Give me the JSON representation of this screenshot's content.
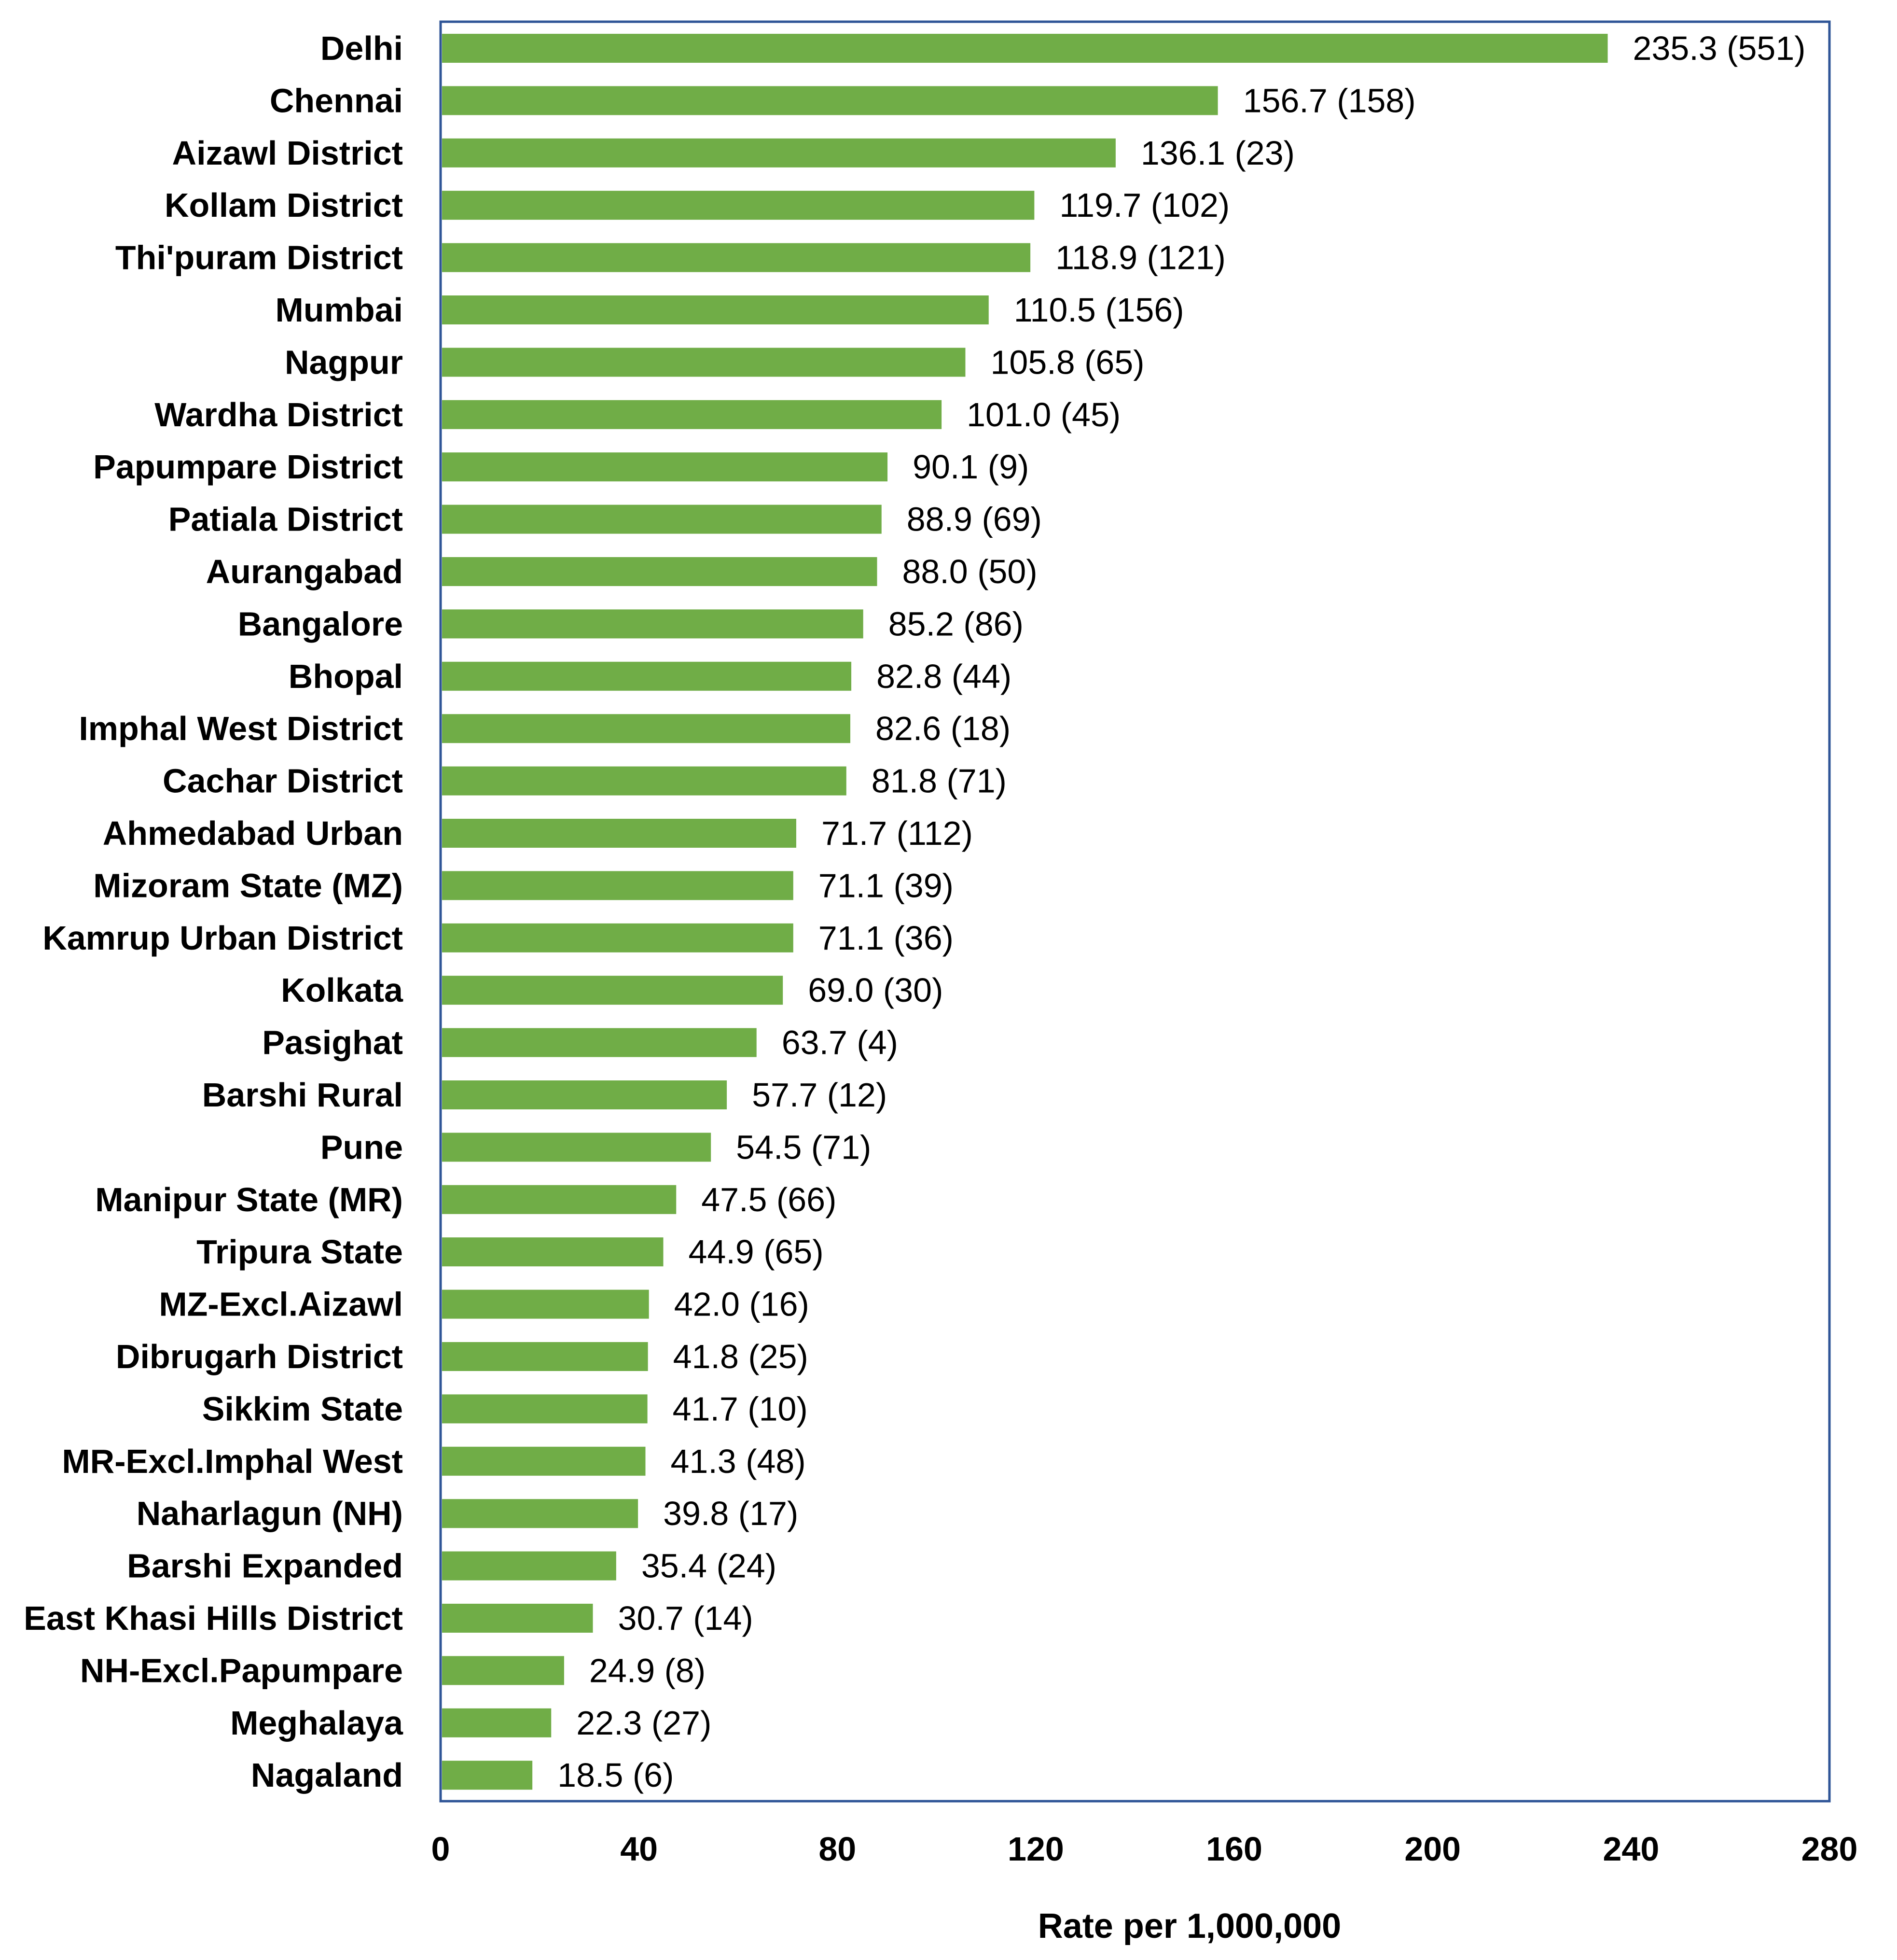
{
  "chart_data": {
    "type": "bar",
    "orientation": "horizontal",
    "categories": [
      "Delhi",
      "Chennai",
      "Aizawl District",
      "Kollam District",
      "Thi'puram District",
      "Mumbai",
      "Nagpur",
      "Wardha District",
      "Papumpare District",
      "Patiala District",
      "Aurangabad",
      "Bangalore",
      "Bhopal",
      "Imphal West District",
      "Cachar District",
      "Ahmedabad Urban",
      "Mizoram State (MZ)",
      "Kamrup Urban District",
      "Kolkata",
      "Pasighat",
      "Barshi Rural",
      "Pune",
      "Manipur State (MR)",
      "Tripura State",
      "MZ-Excl.Aizawl",
      "Dibrugarh District",
      "Sikkim State",
      "MR-Excl.Imphal West",
      "Naharlagun (NH)",
      "Barshi Expanded",
      "East Khasi Hills District",
      "NH-Excl.Papumpare",
      "Meghalaya",
      "Nagaland"
    ],
    "values": [
      235.3,
      156.7,
      136.1,
      119.7,
      118.9,
      110.5,
      105.8,
      101.0,
      90.1,
      88.9,
      88.0,
      85.2,
      82.8,
      82.6,
      81.8,
      71.7,
      71.1,
      71.1,
      69.0,
      63.7,
      57.7,
      54.5,
      47.5,
      44.9,
      42.0,
      41.8,
      41.7,
      41.3,
      39.8,
      35.4,
      30.7,
      24.9,
      22.3,
      18.5
    ],
    "data_labels": [
      "235.3 (551)",
      "156.7 (158)",
      "136.1 (23)",
      "119.7 (102)",
      "118.9 (121)",
      "110.5 (156)",
      "105.8 (65)",
      "101.0 (45)",
      "90.1 (9)",
      "88.9 (69)",
      "88.0 (50)",
      "85.2 (86)",
      "82.8 (44)",
      "82.6 (18)",
      "81.8 (71)",
      "71.7 (112)",
      "71.1 (39)",
      "71.1 (36)",
      "69.0 (30)",
      "63.7 (4)",
      "57.7 (12)",
      "54.5 (71)",
      "47.5 (66)",
      "44.9 (65)",
      "42.0 (16)",
      "41.8 (25)",
      "41.7 (10)",
      "41.3 (48)",
      "39.8 (17)",
      "35.4 (24)",
      "30.7 (14)",
      "24.9 (8)",
      "22.3 (27)",
      "18.5 (6)"
    ],
    "title": "",
    "xlabel": "Rate per 1,000,000",
    "ylabel": "",
    "xlim": [
      0,
      280
    ],
    "xticks": [
      0,
      40,
      80,
      120,
      160,
      200,
      240,
      280
    ],
    "grid": false,
    "legend": "none",
    "bar_color": "#70ad47",
    "frame_color": "#2f5597"
  }
}
